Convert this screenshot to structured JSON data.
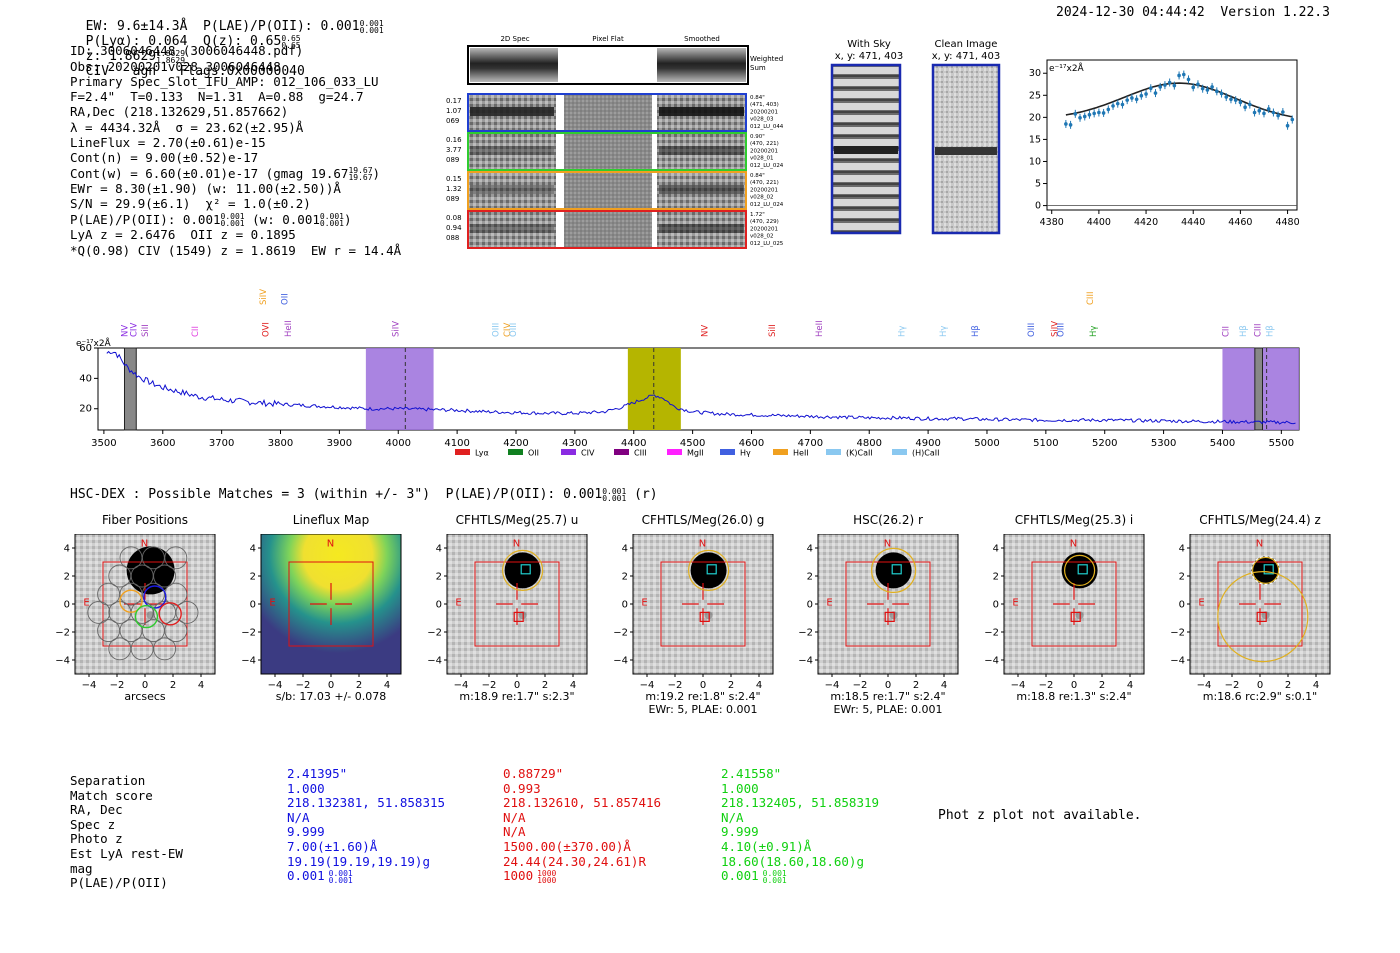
{
  "header": {
    "left": "EW: 9.6±14.3Å  P(LAE)/P(OII): 0.001",
    "ew_frac": [
      "0.001",
      "0.001"
    ],
    "plya": "P(Lyα): 0.064  Q(z): 0.65",
    "qz_frac": [
      "0.65",
      "0.65"
    ],
    "z": "z: 1.8629",
    "z_frac": [
      "1.8629",
      "1.8629"
    ],
    "rest": "CIV   agn   Flags:0x00000040",
    "timestamp": "2024-12-30 04:44:42",
    "version": "Version 1.22.3"
  },
  "info": {
    "l1": "ID: 3006046448 (3006046448.pdf)",
    "l2": "Obs: 20200201v028_3006046448",
    "l3": "Primary Spec_Slot_IFU_AMP: 012_106_033_LU",
    "l4": "F=2.4\"  T=0.133  N=1.31  A=0.88  g=24.7",
    "l5": "RA,Dec (218.132629,51.857662)",
    "l6": "λ = 4434.32Å  σ = 23.62(±2.95)Å",
    "l7": "LineFlux = 2.70(±0.61)e-15",
    "l8": "Cont(n) = 9.00(±0.52)e-17",
    "l9": "Cont(w) = 6.60(±0.01)e-17 (gmag 19.67",
    "l9_frac": [
      "19.67",
      "19.67"
    ],
    "l10": "EWr = 8.30(±1.90) (w: 11.00(±2.50))Å",
    "l11": "S/N = 29.9(±6.1)  χ² = 1.0(±0.2)",
    "l12": "P(LAE)/P(OII): 0.001",
    "l12_frac": [
      "0.001",
      "0.001"
    ],
    "l12b": "(w: 0.001",
    "l12b_frac": [
      "0.001",
      "0.001"
    ],
    "l13": "LyA z = 2.6476  OII z = 0.1895",
    "l14": "*Q(0.98) CIV (1549) z = 1.8619  EW r = 14.4Å"
  },
  "fiber_panel": {
    "col_titles": [
      "2D Spec",
      "Pixel Flat",
      "Smoothed"
    ],
    "weighted_sum": [
      "Weighted",
      "Sum"
    ],
    "rows": [
      {
        "left": [
          "0.17",
          "1.07",
          "069"
        ],
        "right": [
          "0.84\"",
          "(471, 403)",
          "20200201",
          "v028_03",
          "012_LU_044"
        ],
        "color": "#1f3fd0"
      },
      {
        "left": [
          "0.16",
          "3.77",
          "089"
        ],
        "right": [
          "0.90\"",
          "(470, 221)",
          "20200201",
          "v028_01",
          "012_LU_024"
        ],
        "color": "#2fcc2f"
      },
      {
        "left": [
          "0.15",
          "1.32",
          "089"
        ],
        "right": [
          "0.84\"",
          "(470, 221)",
          "20200201",
          "v028_02",
          "012_LU_024"
        ],
        "color": "#f0a020"
      },
      {
        "left": [
          "0.08",
          "0.94",
          "088"
        ],
        "right": [
          "1.72\"",
          "(470, 229)",
          "20200201",
          "v028_02",
          "012_LU_025"
        ],
        "color": "#e02020"
      }
    ]
  },
  "sky": {
    "with_sky_title": [
      "With Sky",
      "x, y: 471, 403"
    ],
    "clean_title": [
      "Clean Image",
      "x, y: 471, 403"
    ]
  },
  "zoom_chart": {
    "unit": "e⁻¹⁷x2Å",
    "xticks": [
      "4380",
      "4400",
      "4420",
      "4440",
      "4460",
      "4480"
    ],
    "yticks": [
      "0",
      "5",
      "10",
      "15",
      "20",
      "25",
      "30"
    ]
  },
  "chart_data": [
    {
      "type": "scatter",
      "title": "",
      "xlabel": "",
      "ylabel": "e⁻¹⁷x2Å",
      "xlim": [
        4378,
        4484
      ],
      "ylim": [
        -1,
        33
      ],
      "x": [
        4386,
        4388,
        4390,
        4392,
        4394,
        4396,
        4398,
        4400,
        4402,
        4404,
        4406,
        4408,
        4410,
        4412,
        4414,
        4416,
        4418,
        4420,
        4422,
        4424,
        4426,
        4428,
        4430,
        4432,
        4434,
        4436,
        4438,
        4440,
        4442,
        4444,
        4446,
        4448,
        4450,
        4452,
        4454,
        4456,
        4458,
        4460,
        4462,
        4464,
        4466,
        4468,
        4470,
        4472,
        4474,
        4476,
        4478,
        4480,
        4482
      ],
      "y": [
        18.5,
        18.3,
        20.8,
        19.9,
        20.2,
        20.6,
        20.9,
        21.1,
        21.0,
        21.8,
        22.6,
        23.1,
        22.9,
        23.9,
        24.4,
        24.1,
        24.9,
        25.3,
        26.6,
        25.5,
        26.9,
        27.3,
        27.9,
        27.2,
        29.5,
        29.7,
        28.6,
        26.8,
        27.5,
        26.5,
        26.2,
        26.9,
        25.9,
        25.4,
        24.6,
        24.1,
        23.9,
        23.4,
        22.3,
        22.9,
        21.1,
        21.5,
        20.9,
        21.9,
        21.1,
        20.4,
        21.2,
        18.1,
        19.5
      ]
    },
    {
      "type": "line",
      "title": "",
      "xlabel": "",
      "ylabel": "e⁻¹⁷x2Å",
      "xlim": [
        3490,
        5530
      ],
      "ylim": [
        6,
        60
      ],
      "xticks": [
        "3500",
        "3600",
        "3700",
        "3800",
        "3900",
        "4000",
        "4100",
        "4200",
        "4300",
        "4400",
        "4500",
        "4600",
        "4700",
        "4800",
        "4900",
        "5000",
        "5100",
        "5200",
        "5300",
        "5400",
        "5500"
      ],
      "yticks": [
        "20",
        "40",
        "60"
      ],
      "x": [
        3500,
        3510,
        3520,
        3530,
        3540,
        3550,
        3560,
        3580,
        3600,
        3620,
        3640,
        3660,
        3680,
        3700,
        3730,
        3760,
        3800,
        3850,
        3900,
        3950,
        4000,
        4050,
        4100,
        4150,
        4200,
        4250,
        4300,
        4350,
        4380,
        4400,
        4420,
        4435,
        4450,
        4470,
        4500,
        4550,
        4600,
        4650,
        4700,
        4750,
        4800,
        4850,
        4900,
        4950,
        5000,
        5100,
        5200,
        5300,
        5400,
        5500,
        5520
      ],
      "y": [
        55,
        58,
        57,
        52,
        47,
        44,
        41,
        37,
        34,
        32,
        30,
        28,
        27,
        26,
        25,
        24,
        23,
        22,
        21,
        20,
        20,
        19.5,
        19,
        18,
        17.5,
        17,
        17,
        18,
        21,
        24,
        27,
        29,
        27,
        21,
        18,
        16.5,
        16,
        15.5,
        15,
        14.5,
        14,
        14,
        13.5,
        13.5,
        13,
        12.5,
        12.5,
        12,
        11.5,
        11,
        11
      ]
    }
  ],
  "spectrum": {
    "unit": "e⁻¹⁷x2Å",
    "line_labels": [
      {
        "t": "NV",
        "x": 3540,
        "c": "#8a2be2",
        "row": 1
      },
      {
        "t": "CIV",
        "x": 3555,
        "c": "#8a2be2",
        "row": 1
      },
      {
        "t": "SiII",
        "x": 3575,
        "c": "#a040c0",
        "row": 1
      },
      {
        "t": "CII",
        "x": 3660,
        "c": "#e040e0",
        "row": 1
      },
      {
        "t": "SiIV",
        "x": 3775,
        "c": "#f0a020",
        "row": 0
      },
      {
        "t": "OVI",
        "x": 3780,
        "c": "#e02020",
        "row": 1
      },
      {
        "t": "OII",
        "x": 3812,
        "c": "#4060e0",
        "row": 0
      },
      {
        "t": "HeII",
        "x": 3818,
        "c": "#a040c0",
        "row": 1
      },
      {
        "t": "SiIV",
        "x": 4000,
        "c": "#a040c0",
        "row": 1
      },
      {
        "t": "OIII",
        "x": 4170,
        "c": "#8ac8f0",
        "row": 1
      },
      {
        "t": "CIV",
        "x": 4190,
        "c": "#f0a020",
        "row": 1
      },
      {
        "t": "OIII",
        "x": 4200,
        "c": "#8ac8f0",
        "row": 1
      },
      {
        "t": "NV",
        "x": 4525,
        "c": "#e02020",
        "row": 1
      },
      {
        "t": "SiII",
        "x": 4640,
        "c": "#e02020",
        "row": 1
      },
      {
        "t": "HeII",
        "x": 4720,
        "c": "#a040c0",
        "row": 1
      },
      {
        "t": "Hγ",
        "x": 4860,
        "c": "#8ac8f0",
        "row": 1
      },
      {
        "t": "Hγ",
        "x": 4930,
        "c": "#8ac8f0",
        "row": 1
      },
      {
        "t": "Hβ",
        "x": 4985,
        "c": "#4060e0",
        "row": 1
      },
      {
        "t": "OIII",
        "x": 5080,
        "c": "#4060e0",
        "row": 1
      },
      {
        "t": "SiIV",
        "x": 5120,
        "c": "#e02020",
        "row": 1
      },
      {
        "t": "OIII",
        "x": 5130,
        "c": "#4060e0",
        "row": 1
      },
      {
        "t": "CIII",
        "x": 5180,
        "c": "#f0a020",
        "row": 0
      },
      {
        "t": "Hγ",
        "x": 5185,
        "c": "#20a020",
        "row": 1
      },
      {
        "t": "CII",
        "x": 5410,
        "c": "#a040c0",
        "row": 1
      },
      {
        "t": "Hβ",
        "x": 5440,
        "c": "#8ac8f0",
        "row": 1
      },
      {
        "t": "CIII",
        "x": 5465,
        "c": "#a040c0",
        "row": 1
      },
      {
        "t": "Hβ",
        "x": 5485,
        "c": "#8ac8f0",
        "row": 1
      }
    ],
    "legend": [
      {
        "name": "Lyα",
        "c": "#e02020"
      },
      {
        "name": "OII",
        "c": "#108020"
      },
      {
        "name": "CIV",
        "c": "#8a2be2"
      },
      {
        "name": "CIII",
        "c": "#800080"
      },
      {
        "name": "MgII",
        "c": "#ff20ff"
      },
      {
        "name": "Hγ",
        "c": "#4060e0"
      },
      {
        "name": "HeII",
        "c": "#f0a020"
      },
      {
        "name": "(K)CaII",
        "c": "#8ac8f0"
      },
      {
        "name": "(H)CaII",
        "c": "#8ac8f0"
      }
    ]
  },
  "hsc": {
    "line": "HSC-DEX : Possible Matches = 3 (within +/- 3\")  P(LAE)/P(OII): 0.001",
    "frac": [
      "0.001",
      "0.001"
    ],
    "tail": "(r)"
  },
  "cutouts": [
    {
      "title": "Fiber Positions",
      "cap1": "arcsecs",
      "cap2": ""
    },
    {
      "title": "Lineflux Map",
      "cap1": "s/b: 17.03 +/- 0.078",
      "cap2": ""
    },
    {
      "title": "CFHTLS/Meg(25.7) u",
      "cap1": "m:18.9  re:1.7\"  s:2.3\"",
      "cap2": ""
    },
    {
      "title": "CFHTLS/Meg(26.0) g",
      "cap1": "m:19.2  re:1.8\"  s:2.4\"",
      "cap2": "EWr: 5, PLAE: 0.001"
    },
    {
      "title": "HSC(26.2) r",
      "cap1": "m:18.5  re:1.7\"  s:2.4\"",
      "cap2": "EWr: 5, PLAE: 0.001"
    },
    {
      "title": "CFHTLS/Meg(25.3) i",
      "cap1": "m:18.8  re:1.3\"  s:2.4\"",
      "cap2": ""
    },
    {
      "title": "CFHTLS/Meg(24.4) z",
      "cap1": "m:18.6  rc:2.9\"  s:0.1\"",
      "cap2": ""
    }
  ],
  "cut_ticks": [
    "4",
    "2",
    "0",
    "−2",
    "−4"
  ],
  "cut_xticks": [
    "−4",
    "−2",
    "0",
    "2",
    "4"
  ],
  "compass": {
    "n": "N",
    "e": "E"
  },
  "matches": {
    "labels": [
      "Separation",
      "Match score",
      "RA, Dec",
      "Spec z",
      "Photo z",
      "Est LyA rest-EW",
      "mag",
      "P(LAE)/P(OII)"
    ],
    "cols": [
      {
        "color": "#1010e0",
        "vals": [
          "2.41395\"",
          "1.000",
          "218.132381, 51.858315",
          "N/A",
          "9.999",
          "7.00(±1.60)Å",
          "19.19(19.19,19.19)g",
          "0.001"
        ],
        "frac": [
          "0.001",
          "0.001"
        ]
      },
      {
        "color": "#e01010",
        "vals": [
          "0.88729\"",
          "0.993",
          "218.132610, 51.857416",
          "N/A",
          "N/A",
          "1500.00(±370.00)Å",
          "24.44(24.30,24.61)R",
          "1000"
        ],
        "frac": [
          "1000",
          "1000"
        ]
      },
      {
        "color": "#10d010",
        "vals": [
          "2.41558\"",
          "1.000",
          "218.132405, 51.858319",
          "N/A",
          "9.999",
          "4.10(±0.91)Å",
          "18.60(18.60,18.60)g",
          "0.001"
        ],
        "frac": [
          "0.001",
          "0.001"
        ]
      }
    ],
    "photz_note": "Phot z plot not available."
  }
}
